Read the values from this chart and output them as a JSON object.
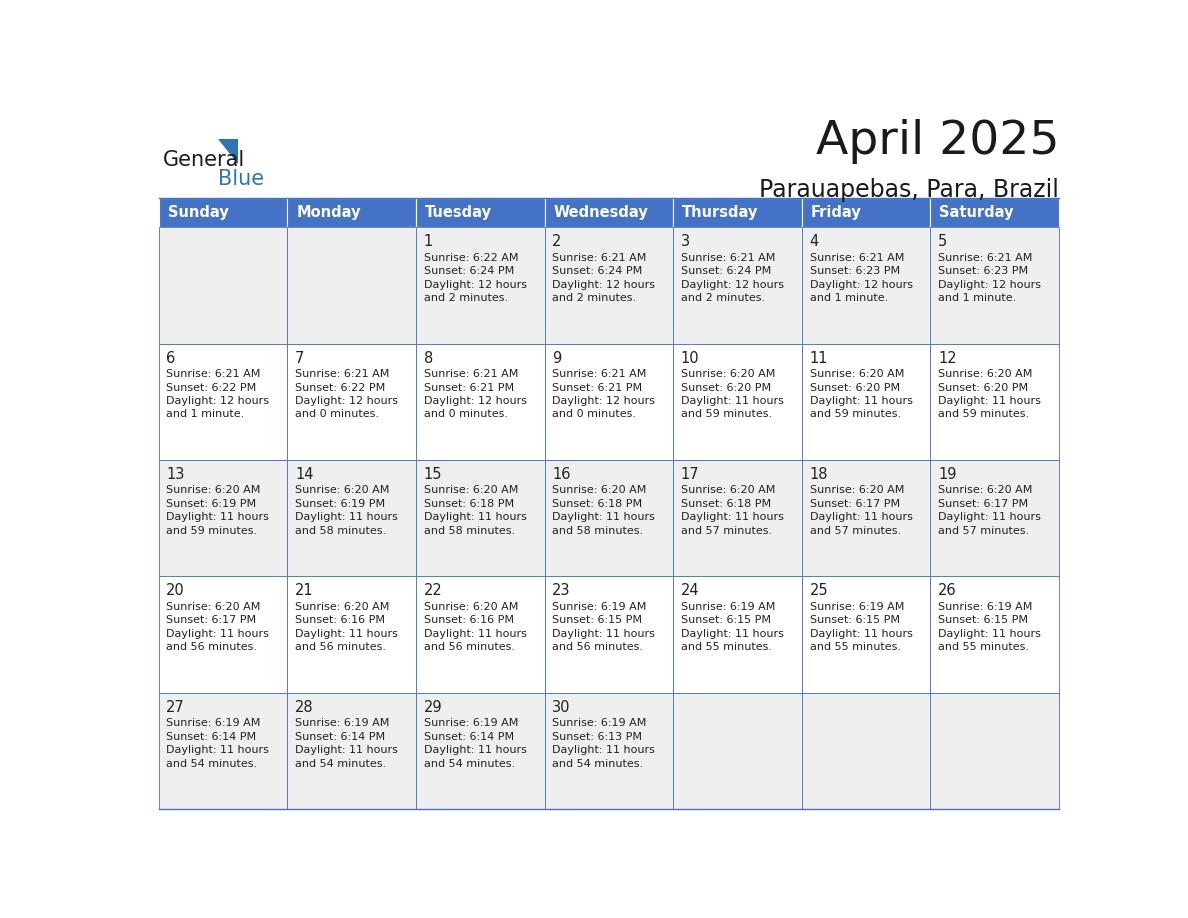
{
  "title": "April 2025",
  "subtitle": "Parauapebas, Para, Brazil",
  "days_of_week": [
    "Sunday",
    "Monday",
    "Tuesday",
    "Wednesday",
    "Thursday",
    "Friday",
    "Saturday"
  ],
  "header_bg": "#4472C4",
  "header_text": "#FFFFFF",
  "row_bg_even": "#EFEFEF",
  "row_bg_odd": "#FFFFFF",
  "cell_border": "#4472C4",
  "day_num_color": "#222222",
  "info_text_color": "#222222",
  "title_color": "#1a1a1a",
  "subtitle_color": "#1a1a1a",
  "logo_general_color": "#1a1a1a",
  "logo_blue_color": "#2E75B6",
  "calendar_data": [
    [
      null,
      null,
      {
        "day": 1,
        "sunrise": "6:22 AM",
        "sunset": "6:24 PM",
        "daylight_h": "12 hours",
        "daylight_m": "and 2 minutes."
      },
      {
        "day": 2,
        "sunrise": "6:21 AM",
        "sunset": "6:24 PM",
        "daylight_h": "12 hours",
        "daylight_m": "and 2 minutes."
      },
      {
        "day": 3,
        "sunrise": "6:21 AM",
        "sunset": "6:24 PM",
        "daylight_h": "12 hours",
        "daylight_m": "and 2 minutes."
      },
      {
        "day": 4,
        "sunrise": "6:21 AM",
        "sunset": "6:23 PM",
        "daylight_h": "12 hours",
        "daylight_m": "and 1 minute."
      },
      {
        "day": 5,
        "sunrise": "6:21 AM",
        "sunset": "6:23 PM",
        "daylight_h": "12 hours",
        "daylight_m": "and 1 minute."
      }
    ],
    [
      {
        "day": 6,
        "sunrise": "6:21 AM",
        "sunset": "6:22 PM",
        "daylight_h": "12 hours",
        "daylight_m": "and 1 minute."
      },
      {
        "day": 7,
        "sunrise": "6:21 AM",
        "sunset": "6:22 PM",
        "daylight_h": "12 hours",
        "daylight_m": "and 0 minutes."
      },
      {
        "day": 8,
        "sunrise": "6:21 AM",
        "sunset": "6:21 PM",
        "daylight_h": "12 hours",
        "daylight_m": "and 0 minutes."
      },
      {
        "day": 9,
        "sunrise": "6:21 AM",
        "sunset": "6:21 PM",
        "daylight_h": "12 hours",
        "daylight_m": "and 0 minutes."
      },
      {
        "day": 10,
        "sunrise": "6:20 AM",
        "sunset": "6:20 PM",
        "daylight_h": "11 hours",
        "daylight_m": "and 59 minutes."
      },
      {
        "day": 11,
        "sunrise": "6:20 AM",
        "sunset": "6:20 PM",
        "daylight_h": "11 hours",
        "daylight_m": "and 59 minutes."
      },
      {
        "day": 12,
        "sunrise": "6:20 AM",
        "sunset": "6:20 PM",
        "daylight_h": "11 hours",
        "daylight_m": "and 59 minutes."
      }
    ],
    [
      {
        "day": 13,
        "sunrise": "6:20 AM",
        "sunset": "6:19 PM",
        "daylight_h": "11 hours",
        "daylight_m": "and 59 minutes."
      },
      {
        "day": 14,
        "sunrise": "6:20 AM",
        "sunset": "6:19 PM",
        "daylight_h": "11 hours",
        "daylight_m": "and 58 minutes."
      },
      {
        "day": 15,
        "sunrise": "6:20 AM",
        "sunset": "6:18 PM",
        "daylight_h": "11 hours",
        "daylight_m": "and 58 minutes."
      },
      {
        "day": 16,
        "sunrise": "6:20 AM",
        "sunset": "6:18 PM",
        "daylight_h": "11 hours",
        "daylight_m": "and 58 minutes."
      },
      {
        "day": 17,
        "sunrise": "6:20 AM",
        "sunset": "6:18 PM",
        "daylight_h": "11 hours",
        "daylight_m": "and 57 minutes."
      },
      {
        "day": 18,
        "sunrise": "6:20 AM",
        "sunset": "6:17 PM",
        "daylight_h": "11 hours",
        "daylight_m": "and 57 minutes."
      },
      {
        "day": 19,
        "sunrise": "6:20 AM",
        "sunset": "6:17 PM",
        "daylight_h": "11 hours",
        "daylight_m": "and 57 minutes."
      }
    ],
    [
      {
        "day": 20,
        "sunrise": "6:20 AM",
        "sunset": "6:17 PM",
        "daylight_h": "11 hours",
        "daylight_m": "and 56 minutes."
      },
      {
        "day": 21,
        "sunrise": "6:20 AM",
        "sunset": "6:16 PM",
        "daylight_h": "11 hours",
        "daylight_m": "and 56 minutes."
      },
      {
        "day": 22,
        "sunrise": "6:20 AM",
        "sunset": "6:16 PM",
        "daylight_h": "11 hours",
        "daylight_m": "and 56 minutes."
      },
      {
        "day": 23,
        "sunrise": "6:19 AM",
        "sunset": "6:15 PM",
        "daylight_h": "11 hours",
        "daylight_m": "and 56 minutes."
      },
      {
        "day": 24,
        "sunrise": "6:19 AM",
        "sunset": "6:15 PM",
        "daylight_h": "11 hours",
        "daylight_m": "and 55 minutes."
      },
      {
        "day": 25,
        "sunrise": "6:19 AM",
        "sunset": "6:15 PM",
        "daylight_h": "11 hours",
        "daylight_m": "and 55 minutes."
      },
      {
        "day": 26,
        "sunrise": "6:19 AM",
        "sunset": "6:15 PM",
        "daylight_h": "11 hours",
        "daylight_m": "and 55 minutes."
      }
    ],
    [
      {
        "day": 27,
        "sunrise": "6:19 AM",
        "sunset": "6:14 PM",
        "daylight_h": "11 hours",
        "daylight_m": "and 54 minutes."
      },
      {
        "day": 28,
        "sunrise": "6:19 AM",
        "sunset": "6:14 PM",
        "daylight_h": "11 hours",
        "daylight_m": "and 54 minutes."
      },
      {
        "day": 29,
        "sunrise": "6:19 AM",
        "sunset": "6:14 PM",
        "daylight_h": "11 hours",
        "daylight_m": "and 54 minutes."
      },
      {
        "day": 30,
        "sunrise": "6:19 AM",
        "sunset": "6:13 PM",
        "daylight_h": "11 hours",
        "daylight_m": "and 54 minutes."
      },
      null,
      null,
      null
    ]
  ]
}
